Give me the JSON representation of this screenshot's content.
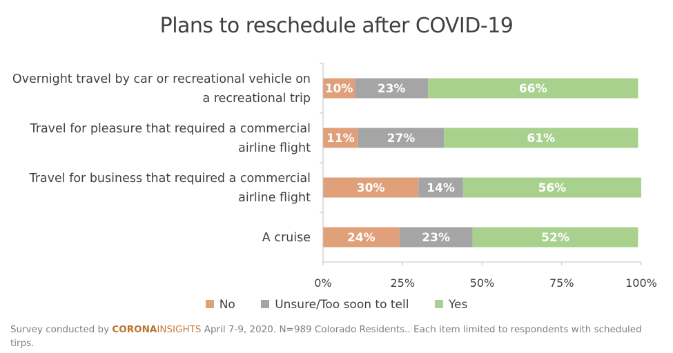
{
  "chart_data": {
    "type": "bar",
    "orientation": "horizontal",
    "stacked": true,
    "title": "Plans to reschedule after COVID-19",
    "categories": [
      "Overnight travel by car or recreational vehicle on a recreational trip",
      "Travel for pleasure that required a commercial airline flight",
      "Travel for business that required a commercial airline flight",
      "A cruise"
    ],
    "series": [
      {
        "name": "No",
        "color": "#e0a07a",
        "values": [
          10,
          11,
          30,
          24
        ],
        "labels": [
          "10%",
          "11%",
          "30%",
          "24%"
        ]
      },
      {
        "name": "Unsure/Too soon to tell",
        "color": "#a5a5a5",
        "values": [
          23,
          27,
          14,
          23
        ],
        "labels": [
          "23%",
          "27%",
          "14%",
          "23%"
        ]
      },
      {
        "name": "Yes",
        "color": "#a9d18e",
        "values": [
          66,
          61,
          56,
          52
        ],
        "labels": [
          "66%",
          "61%",
          "56%",
          "52%"
        ]
      }
    ],
    "xlim": [
      0,
      100
    ],
    "xticks": [
      "0%",
      "25%",
      "50%",
      "75%",
      "100%"
    ],
    "legend_position": "bottom",
    "grid": false
  },
  "footnote": {
    "prefix": "Survey conducted by ",
    "brand_part1": "CORONA",
    "brand_part2": "INSIGHTS",
    "suffix": " April 7-9, 2020. N=989 Colorado Residents.. Each item limited to respondents with scheduled tirps."
  }
}
